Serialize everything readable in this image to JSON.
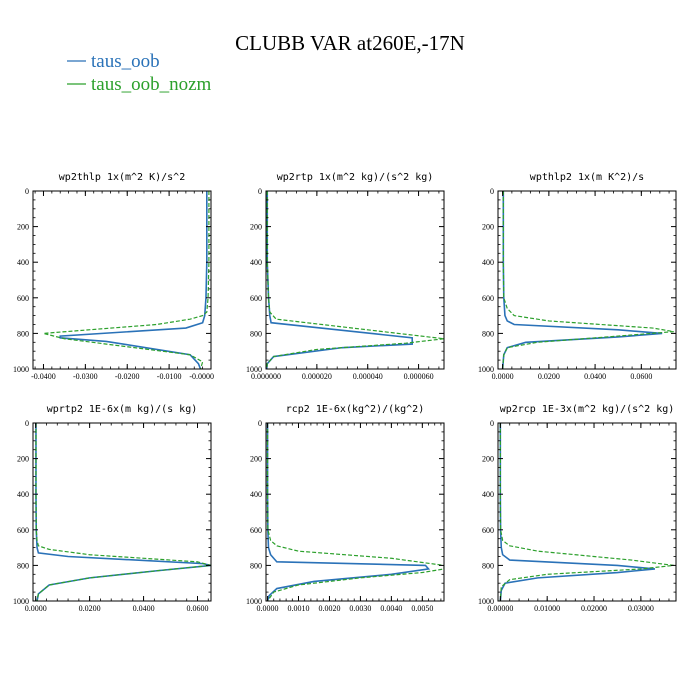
{
  "figure": {
    "title": "CLUBB VAR at260E,-17N"
  },
  "legend": [
    {
      "name": "taus_oob",
      "color": "#2a72b8",
      "dash": "solid"
    },
    {
      "name": "taus_oob_nozm",
      "color": "#2ca02c",
      "dash": "dashed"
    }
  ],
  "chart_data": [
    {
      "type": "line",
      "title": "wp2thlp  1x(m^2 K)/s^2",
      "xlim": [
        -0.0425,
        0.0
      ],
      "ylim": [
        1000,
        0
      ],
      "y_inverted": true,
      "xticks": [
        -0.04,
        -0.03,
        -0.02,
        -0.01,
        0.0
      ],
      "xtick_labels": [
        "-0.0400",
        "-0.0300",
        "-0.0200",
        "-0.0100",
        "-0.0000"
      ],
      "yticks": [
        0,
        200,
        400,
        600,
        800,
        1000
      ],
      "ytick_labels": [
        "0",
        "200",
        "400",
        "600",
        "800",
        "1000"
      ],
      "series": [
        {
          "name": "taus_oob",
          "x": [
            -0.001,
            -0.001,
            -0.001,
            -0.0012,
            -0.0015,
            -0.002,
            -0.006,
            -0.036,
            -0.036,
            -0.025,
            -0.005,
            -0.003,
            -0.0025
          ],
          "y": [
            0,
            200,
            400,
            600,
            700,
            740,
            770,
            815,
            825,
            845,
            920,
            970,
            1000
          ]
        },
        {
          "name": "taus_oob_nozm",
          "x": [
            -0.0005,
            -0.0005,
            -0.0005,
            -0.0007,
            -0.001,
            -0.002,
            -0.005,
            -0.013,
            -0.04,
            -0.035,
            -0.005,
            -0.002,
            -0.0025
          ],
          "y": [
            0,
            200,
            400,
            600,
            680,
            700,
            720,
            750,
            800,
            830,
            920,
            960,
            1000
          ]
        }
      ]
    },
    {
      "type": "line",
      "title": "wp2rtp  1x(m^2 kg)/(s^2 kg)",
      "xlim": [
        0.0,
        7e-05
      ],
      "ylim": [
        1000,
        0
      ],
      "y_inverted": true,
      "xticks": [
        0.0,
        2e-05,
        4e-05,
        6e-05
      ],
      "xtick_labels": [
        "0.000000",
        "0.000020",
        "0.000040",
        "0.000060"
      ],
      "yticks": [
        0,
        200,
        400,
        600,
        800,
        1000
      ],
      "ytick_labels": [
        "0",
        "200",
        "400",
        "600",
        "800",
        "1000"
      ],
      "series": [
        {
          "name": "taus_oob",
          "x": [
            5e-07,
            5e-07,
            5e-07,
            1e-06,
            1.5e-06,
            2e-06,
            5.75e-05,
            5.75e-05,
            3e-05,
            3e-06,
            5e-07,
            3e-07
          ],
          "y": [
            0,
            200,
            400,
            600,
            700,
            740,
            825,
            860,
            880,
            930,
            970,
            1000
          ]
        },
        {
          "name": "taus_oob_nozm",
          "x": [
            5e-07,
            5e-07,
            5e-07,
            1e-06,
            1.5e-06,
            4e-06,
            4e-05,
            7e-05,
            5.5e-05,
            2e-05,
            3e-06,
            5e-07,
            3e-07
          ],
          "y": [
            0,
            200,
            400,
            600,
            680,
            720,
            780,
            830,
            855,
            890,
            930,
            970,
            1000
          ]
        }
      ]
    },
    {
      "type": "line",
      "title": "wpthlp2  1x(m K^2)/s",
      "xlim": [
        -0.002,
        0.075
      ],
      "ylim": [
        1000,
        0
      ],
      "y_inverted": true,
      "xticks": [
        0.0,
        0.02,
        0.04,
        0.06
      ],
      "xtick_labels": [
        "0.0000",
        "0.0200",
        "0.0400",
        "0.0600"
      ],
      "yticks": [
        0,
        200,
        400,
        600,
        800,
        1000
      ],
      "ytick_labels": [
        "0",
        "200",
        "400",
        "600",
        "800",
        "1000"
      ],
      "series": [
        {
          "name": "taus_oob",
          "x": [
            0.0003,
            0.0003,
            0.0003,
            0.0005,
            0.001,
            0.002,
            0.005,
            0.05,
            0.069,
            0.05,
            0.01,
            0.002,
            0.0005,
            0.0
          ],
          "y": [
            0,
            200,
            400,
            600,
            700,
            730,
            750,
            780,
            800,
            820,
            850,
            880,
            920,
            1000
          ]
        },
        {
          "name": "taus_oob_nozm",
          "x": [
            0.0003,
            0.0003,
            0.0003,
            0.0005,
            0.002,
            0.005,
            0.02,
            0.065,
            0.074,
            0.05,
            0.015,
            0.002,
            0.0005,
            0.0
          ],
          "y": [
            0,
            200,
            400,
            600,
            660,
            700,
            730,
            770,
            790,
            815,
            850,
            880,
            920,
            1000
          ]
        }
      ]
    },
    {
      "type": "line",
      "title": "wprtp2  1E-6x(m kg)/(s kg)",
      "xlim": [
        -0.001,
        0.065
      ],
      "ylim": [
        1000,
        0
      ],
      "y_inverted": true,
      "xticks": [
        0.0,
        0.02,
        0.04,
        0.06
      ],
      "xtick_labels": [
        "0.0000",
        "0.0200",
        "0.0400",
        "0.0600"
      ],
      "yticks": [
        0,
        200,
        400,
        600,
        800,
        1000
      ],
      "ytick_labels": [
        "0",
        "200",
        "400",
        "600",
        "800",
        "1000"
      ],
      "series": [
        {
          "name": "taus_oob",
          "x": [
            0.0001,
            0.0001,
            0.0001,
            0.0002,
            0.0005,
            0.001,
            0.012,
            0.062,
            0.065,
            0.045,
            0.02,
            0.005,
            0.001,
            0.0005
          ],
          "y": [
            0,
            200,
            400,
            600,
            700,
            730,
            750,
            790,
            800,
            830,
            870,
            910,
            960,
            1000
          ]
        },
        {
          "name": "taus_oob_nozm",
          "x": [
            0.0001,
            0.0001,
            0.0001,
            0.0002,
            0.0005,
            0.001,
            0.005,
            0.02,
            0.06,
            0.065,
            0.045,
            0.02,
            0.005,
            0.001,
            0.0005
          ],
          "y": [
            0,
            200,
            400,
            600,
            660,
            690,
            710,
            740,
            780,
            800,
            830,
            870,
            910,
            960,
            1000
          ]
        }
      ]
    },
    {
      "type": "line",
      "title": "rcp2  1E-6x(kg^2)/(kg^2)",
      "xlim": [
        -5e-05,
        0.0057
      ],
      "ylim": [
        1000,
        0
      ],
      "y_inverted": true,
      "xticks": [
        0.0,
        0.001,
        0.002,
        0.003,
        0.004,
        0.005
      ],
      "xtick_labels": [
        "0.0000",
        "0.0010",
        "0.0020",
        "0.0030",
        "0.0040",
        "0.0050"
      ],
      "yticks": [
        0,
        200,
        400,
        600,
        800,
        1000
      ],
      "ytick_labels": [
        "0",
        "200",
        "400",
        "600",
        "800",
        "1000"
      ],
      "series": [
        {
          "name": "taus_oob",
          "x": [
            0.0,
            0.0,
            0.0,
            1e-05,
            3e-05,
            0.0001,
            0.0003,
            0.0051,
            0.0052,
            0.004,
            0.0015,
            0.0003,
            5e-05,
            0.0
          ],
          "y": [
            0,
            200,
            400,
            600,
            700,
            740,
            780,
            800,
            820,
            850,
            890,
            930,
            970,
            1000
          ]
        },
        {
          "name": "taus_oob_nozm",
          "x": [
            0.0,
            0.0,
            0.0,
            1e-05,
            0.0001,
            0.0003,
            0.001,
            0.004,
            0.0057,
            0.0057,
            0.005,
            0.003,
            0.001,
            0.0002,
            0.0
          ],
          "y": [
            0,
            200,
            400,
            600,
            660,
            690,
            720,
            760,
            800,
            820,
            840,
            870,
            910,
            950,
            1000
          ]
        }
      ]
    },
    {
      "type": "line",
      "title": "wp2rcp  1E-3x(m^2 kg)/(s^2 kg)",
      "xlim": [
        -0.0005,
        0.0375
      ],
      "ylim": [
        1000,
        0
      ],
      "y_inverted": true,
      "xticks": [
        0.0,
        0.01,
        0.02,
        0.03
      ],
      "xtick_labels": [
        "0.00000",
        "0.01000",
        "0.02000",
        "0.03000"
      ],
      "yticks": [
        0,
        200,
        400,
        600,
        800,
        1000
      ],
      "ytick_labels": [
        "0",
        "200",
        "400",
        "600",
        "800",
        "1000"
      ],
      "series": [
        {
          "name": "taus_oob",
          "x": [
            0.0,
            0.0,
            0.0,
            5e-05,
            0.0002,
            0.0005,
            0.002,
            0.025,
            0.033,
            0.025,
            0.008,
            0.001,
            0.0002,
            0.0
          ],
          "y": [
            0,
            200,
            400,
            600,
            700,
            740,
            770,
            800,
            820,
            840,
            870,
            900,
            940,
            1000
          ]
        },
        {
          "name": "taus_oob_nozm",
          "x": [
            0.0,
            0.0,
            0.0,
            5e-05,
            0.0005,
            0.002,
            0.008,
            0.028,
            0.037,
            0.03,
            0.01,
            0.002,
            0.0002,
            0.0
          ],
          "y": [
            0,
            200,
            400,
            600,
            660,
            690,
            720,
            770,
            800,
            820,
            850,
            880,
            920,
            1000
          ]
        }
      ]
    }
  ]
}
